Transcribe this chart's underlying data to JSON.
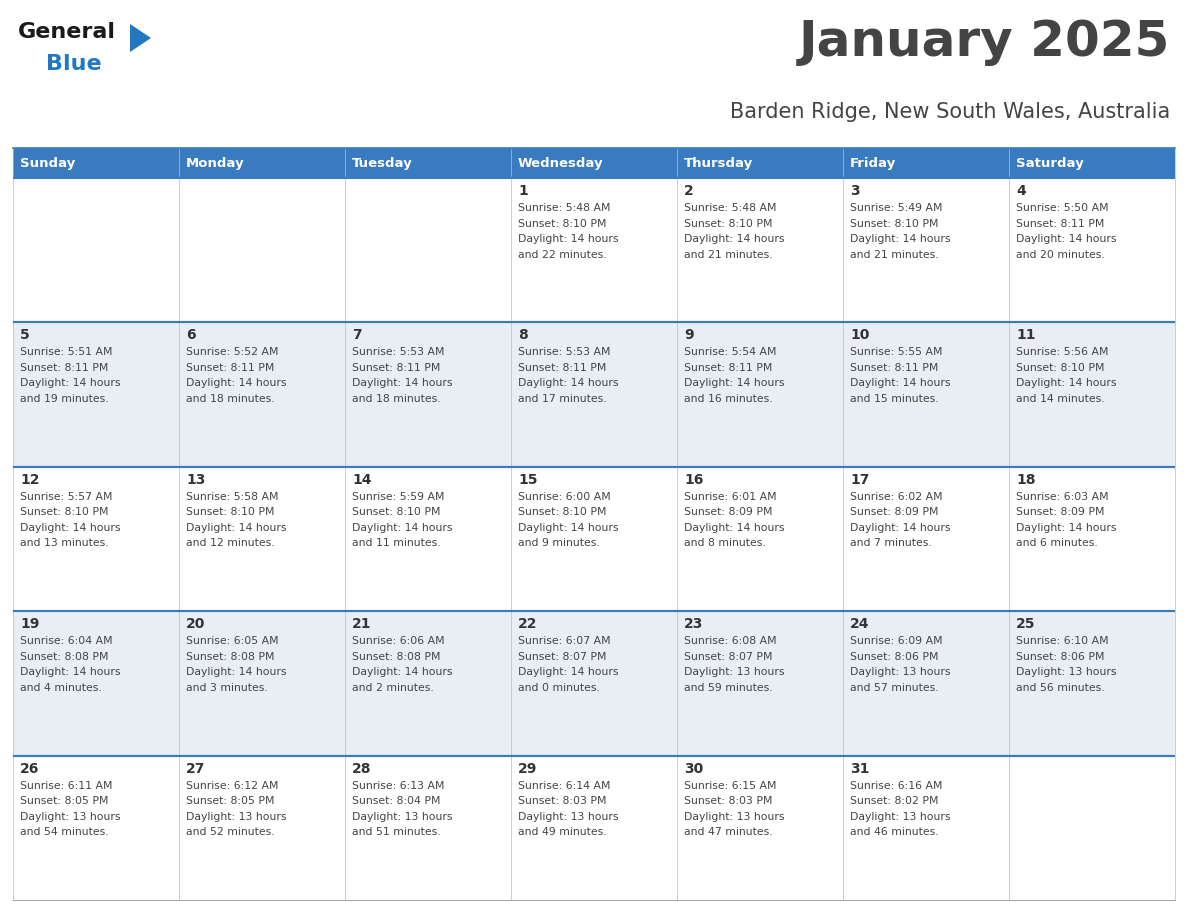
{
  "title": "January 2025",
  "subtitle": "Barden Ridge, New South Wales, Australia",
  "header_bg": "#3a7bbf",
  "header_text_color": "#ffffff",
  "row_bg_light": "#e8eef4",
  "row_bg_white": "#ffffff",
  "cell_text_color": "#444444",
  "day_num_color": "#333333",
  "divider_color": "#3a7bbf",
  "days_of_week": [
    "Sunday",
    "Monday",
    "Tuesday",
    "Wednesday",
    "Thursday",
    "Friday",
    "Saturday"
  ],
  "calendar": [
    [
      {
        "day": null,
        "sunrise": null,
        "sunset": null,
        "daylight_line1": null,
        "daylight_line2": null
      },
      {
        "day": null,
        "sunrise": null,
        "sunset": null,
        "daylight_line1": null,
        "daylight_line2": null
      },
      {
        "day": null,
        "sunrise": null,
        "sunset": null,
        "daylight_line1": null,
        "daylight_line2": null
      },
      {
        "day": 1,
        "sunrise": "5:48 AM",
        "sunset": "8:10 PM",
        "daylight_line1": "Daylight: 14 hours",
        "daylight_line2": "and 22 minutes."
      },
      {
        "day": 2,
        "sunrise": "5:48 AM",
        "sunset": "8:10 PM",
        "daylight_line1": "Daylight: 14 hours",
        "daylight_line2": "and 21 minutes."
      },
      {
        "day": 3,
        "sunrise": "5:49 AM",
        "sunset": "8:10 PM",
        "daylight_line1": "Daylight: 14 hours",
        "daylight_line2": "and 21 minutes."
      },
      {
        "day": 4,
        "sunrise": "5:50 AM",
        "sunset": "8:11 PM",
        "daylight_line1": "Daylight: 14 hours",
        "daylight_line2": "and 20 minutes."
      }
    ],
    [
      {
        "day": 5,
        "sunrise": "5:51 AM",
        "sunset": "8:11 PM",
        "daylight_line1": "Daylight: 14 hours",
        "daylight_line2": "and 19 minutes."
      },
      {
        "day": 6,
        "sunrise": "5:52 AM",
        "sunset": "8:11 PM",
        "daylight_line1": "Daylight: 14 hours",
        "daylight_line2": "and 18 minutes."
      },
      {
        "day": 7,
        "sunrise": "5:53 AM",
        "sunset": "8:11 PM",
        "daylight_line1": "Daylight: 14 hours",
        "daylight_line2": "and 18 minutes."
      },
      {
        "day": 8,
        "sunrise": "5:53 AM",
        "sunset": "8:11 PM",
        "daylight_line1": "Daylight: 14 hours",
        "daylight_line2": "and 17 minutes."
      },
      {
        "day": 9,
        "sunrise": "5:54 AM",
        "sunset": "8:11 PM",
        "daylight_line1": "Daylight: 14 hours",
        "daylight_line2": "and 16 minutes."
      },
      {
        "day": 10,
        "sunrise": "5:55 AM",
        "sunset": "8:11 PM",
        "daylight_line1": "Daylight: 14 hours",
        "daylight_line2": "and 15 minutes."
      },
      {
        "day": 11,
        "sunrise": "5:56 AM",
        "sunset": "8:10 PM",
        "daylight_line1": "Daylight: 14 hours",
        "daylight_line2": "and 14 minutes."
      }
    ],
    [
      {
        "day": 12,
        "sunrise": "5:57 AM",
        "sunset": "8:10 PM",
        "daylight_line1": "Daylight: 14 hours",
        "daylight_line2": "and 13 minutes."
      },
      {
        "day": 13,
        "sunrise": "5:58 AM",
        "sunset": "8:10 PM",
        "daylight_line1": "Daylight: 14 hours",
        "daylight_line2": "and 12 minutes."
      },
      {
        "day": 14,
        "sunrise": "5:59 AM",
        "sunset": "8:10 PM",
        "daylight_line1": "Daylight: 14 hours",
        "daylight_line2": "and 11 minutes."
      },
      {
        "day": 15,
        "sunrise": "6:00 AM",
        "sunset": "8:10 PM",
        "daylight_line1": "Daylight: 14 hours",
        "daylight_line2": "and 9 minutes."
      },
      {
        "day": 16,
        "sunrise": "6:01 AM",
        "sunset": "8:09 PM",
        "daylight_line1": "Daylight: 14 hours",
        "daylight_line2": "and 8 minutes."
      },
      {
        "day": 17,
        "sunrise": "6:02 AM",
        "sunset": "8:09 PM",
        "daylight_line1": "Daylight: 14 hours",
        "daylight_line2": "and 7 minutes."
      },
      {
        "day": 18,
        "sunrise": "6:03 AM",
        "sunset": "8:09 PM",
        "daylight_line1": "Daylight: 14 hours",
        "daylight_line2": "and 6 minutes."
      }
    ],
    [
      {
        "day": 19,
        "sunrise": "6:04 AM",
        "sunset": "8:08 PM",
        "daylight_line1": "Daylight: 14 hours",
        "daylight_line2": "and 4 minutes."
      },
      {
        "day": 20,
        "sunrise": "6:05 AM",
        "sunset": "8:08 PM",
        "daylight_line1": "Daylight: 14 hours",
        "daylight_line2": "and 3 minutes."
      },
      {
        "day": 21,
        "sunrise": "6:06 AM",
        "sunset": "8:08 PM",
        "daylight_line1": "Daylight: 14 hours",
        "daylight_line2": "and 2 minutes."
      },
      {
        "day": 22,
        "sunrise": "6:07 AM",
        "sunset": "8:07 PM",
        "daylight_line1": "Daylight: 14 hours",
        "daylight_line2": "and 0 minutes."
      },
      {
        "day": 23,
        "sunrise": "6:08 AM",
        "sunset": "8:07 PM",
        "daylight_line1": "Daylight: 13 hours",
        "daylight_line2": "and 59 minutes."
      },
      {
        "day": 24,
        "sunrise": "6:09 AM",
        "sunset": "8:06 PM",
        "daylight_line1": "Daylight: 13 hours",
        "daylight_line2": "and 57 minutes."
      },
      {
        "day": 25,
        "sunrise": "6:10 AM",
        "sunset": "8:06 PM",
        "daylight_line1": "Daylight: 13 hours",
        "daylight_line2": "and 56 minutes."
      }
    ],
    [
      {
        "day": 26,
        "sunrise": "6:11 AM",
        "sunset": "8:05 PM",
        "daylight_line1": "Daylight: 13 hours",
        "daylight_line2": "and 54 minutes."
      },
      {
        "day": 27,
        "sunrise": "6:12 AM",
        "sunset": "8:05 PM",
        "daylight_line1": "Daylight: 13 hours",
        "daylight_line2": "and 52 minutes."
      },
      {
        "day": 28,
        "sunrise": "6:13 AM",
        "sunset": "8:04 PM",
        "daylight_line1": "Daylight: 13 hours",
        "daylight_line2": "and 51 minutes."
      },
      {
        "day": 29,
        "sunrise": "6:14 AM",
        "sunset": "8:03 PM",
        "daylight_line1": "Daylight: 13 hours",
        "daylight_line2": "and 49 minutes."
      },
      {
        "day": 30,
        "sunrise": "6:15 AM",
        "sunset": "8:03 PM",
        "daylight_line1": "Daylight: 13 hours",
        "daylight_line2": "and 47 minutes."
      },
      {
        "day": 31,
        "sunrise": "6:16 AM",
        "sunset": "8:02 PM",
        "daylight_line1": "Daylight: 13 hours",
        "daylight_line2": "and 46 minutes."
      },
      {
        "day": null,
        "sunrise": null,
        "sunset": null,
        "daylight_line1": null,
        "daylight_line2": null
      }
    ]
  ],
  "logo_general_color": "#1a1a1a",
  "logo_blue_color": "#2178be",
  "fig_width": 11.88,
  "fig_height": 9.18,
  "dpi": 100
}
